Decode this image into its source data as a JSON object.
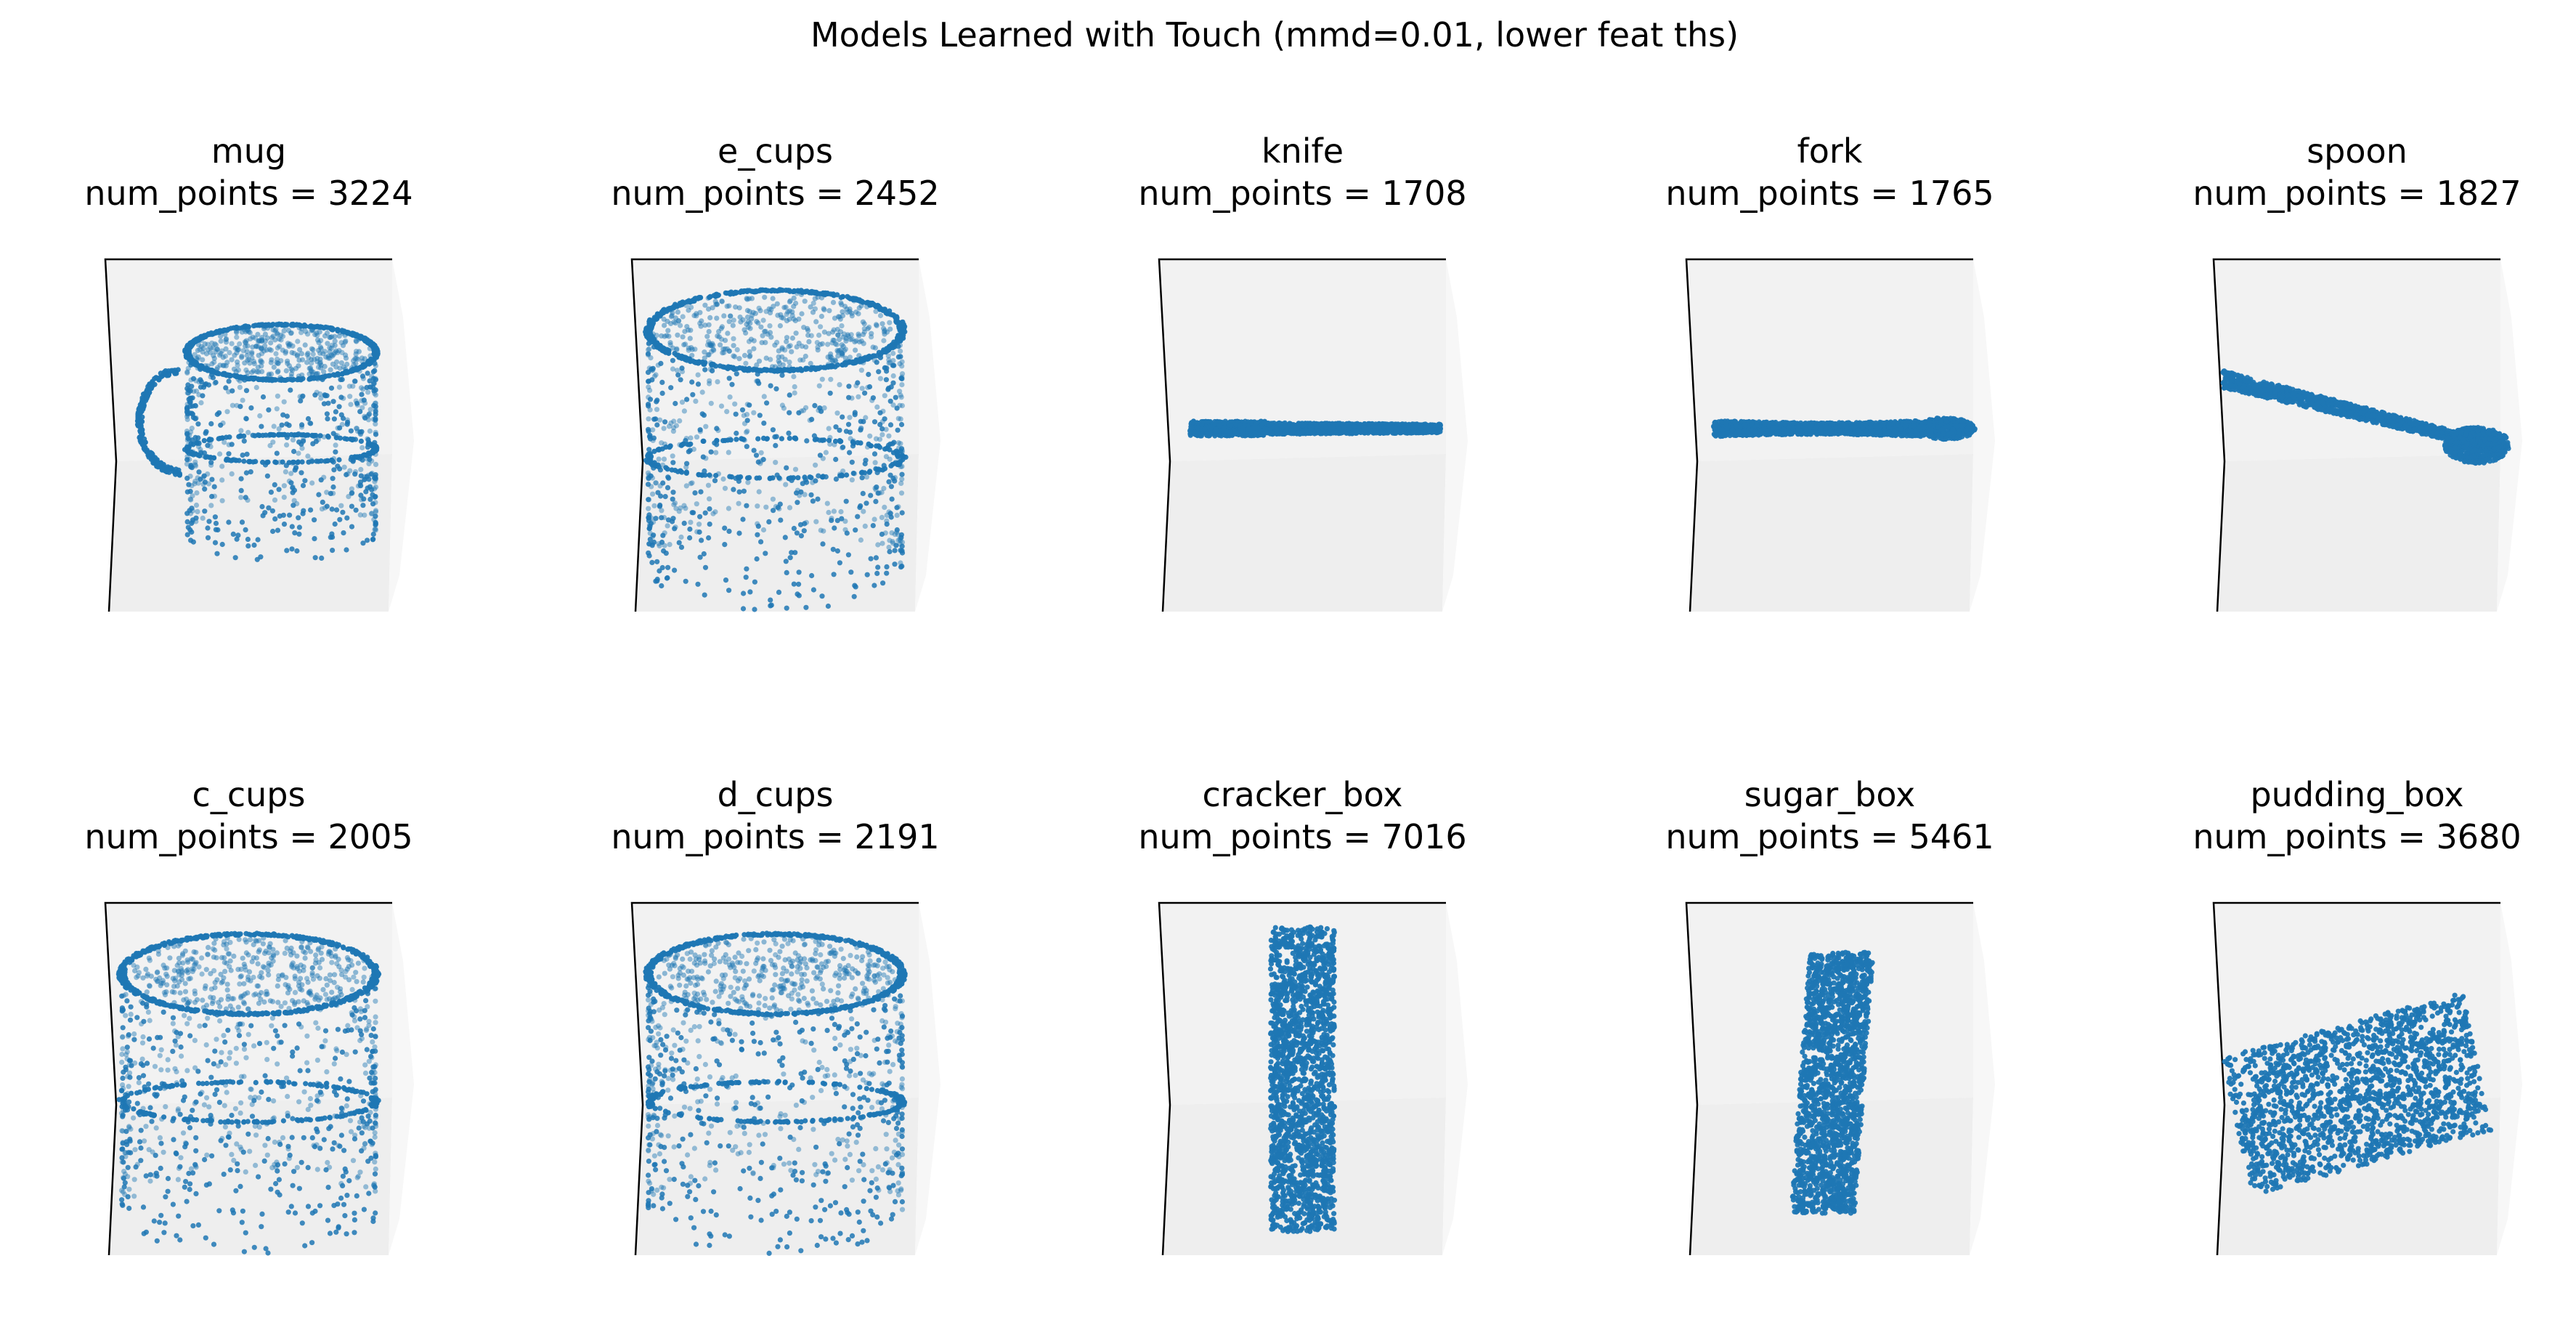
{
  "figure": {
    "suptitle": "Models Learned with Touch (mmd=0.01, lower feat ths)"
  },
  "colors": {
    "points": "#1f77b4",
    "pane_back": "#f2f2f2",
    "pane_side": "#f7f7f7",
    "pane_floor": "#eeeeee",
    "axis_line": "#000000"
  },
  "chart_data": [
    {
      "type": "scatter",
      "projection": "3d",
      "shape": "mug",
      "title": "mug",
      "subtitle": "num_points = 3224",
      "num_points": 3224,
      "axes_visible": false,
      "grid": false
    },
    {
      "type": "scatter",
      "projection": "3d",
      "shape": "cup",
      "title": "e_cups",
      "subtitle": "num_points = 2452",
      "num_points": 2452,
      "axes_visible": false,
      "grid": false
    },
    {
      "type": "scatter",
      "projection": "3d",
      "shape": "knife",
      "title": "knife",
      "subtitle": "num_points = 1708",
      "num_points": 1708,
      "axes_visible": false,
      "grid": false
    },
    {
      "type": "scatter",
      "projection": "3d",
      "shape": "fork",
      "title": "fork",
      "subtitle": "num_points = 1765",
      "num_points": 1765,
      "axes_visible": false,
      "grid": false
    },
    {
      "type": "scatter",
      "projection": "3d",
      "shape": "spoon",
      "title": "spoon",
      "subtitle": "num_points = 1827",
      "num_points": 1827,
      "axes_visible": false,
      "grid": false
    },
    {
      "type": "scatter",
      "projection": "3d",
      "shape": "cup",
      "title": "c_cups",
      "subtitle": "num_points = 2005",
      "num_points": 2005,
      "axes_visible": false,
      "grid": false
    },
    {
      "type": "scatter",
      "projection": "3d",
      "shape": "cup",
      "title": "d_cups",
      "subtitle": "num_points = 2191",
      "num_points": 2191,
      "axes_visible": false,
      "grid": false
    },
    {
      "type": "scatter",
      "projection": "3d",
      "shape": "tall_box",
      "title": "cracker_box",
      "subtitle": "num_points = 7016",
      "num_points": 7016,
      "axes_visible": false,
      "grid": false
    },
    {
      "type": "scatter",
      "projection": "3d",
      "shape": "thin_box",
      "title": "sugar_box",
      "subtitle": "num_points = 5461",
      "num_points": 5461,
      "axes_visible": false,
      "grid": false
    },
    {
      "type": "scatter",
      "projection": "3d",
      "shape": "flat_box",
      "title": "pudding_box",
      "subtitle": "num_points = 3680",
      "num_points": 3680,
      "axes_visible": false,
      "grid": false
    }
  ]
}
